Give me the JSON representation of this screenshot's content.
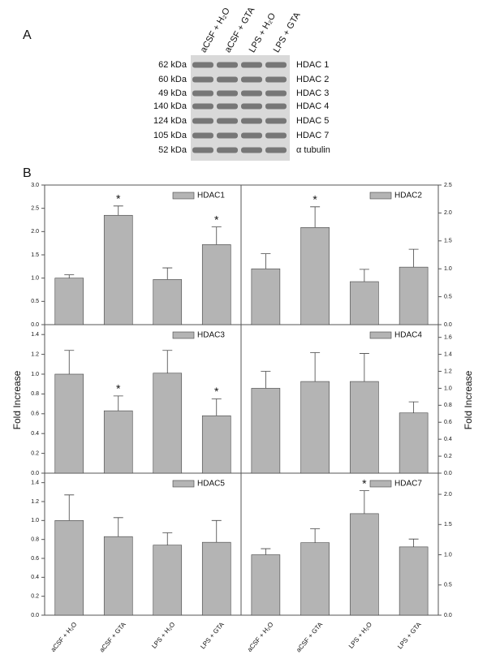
{
  "panel_labels": [
    "A",
    "B"
  ],
  "blot": {
    "lanes": [
      "aCSF + H₂O",
      "aCSF + GTA",
      "LPS + H₂O",
      "LPS + GTA"
    ],
    "rows": [
      {
        "kda": "62 kDa",
        "protein": "HDAC 1"
      },
      {
        "kda": "60 kDa",
        "protein": "HDAC 2"
      },
      {
        "kda": "49 kDa",
        "protein": "HDAC 3"
      },
      {
        "kda": "140 kDa",
        "protein": "HDAC 4"
      },
      {
        "kda": "124 kDa",
        "protein": "HDAC 5"
      },
      {
        "kda": "105 kDa",
        "protein": "HDAC 7"
      },
      {
        "kda": "52 kDa",
        "protein": "α tubulin"
      }
    ]
  },
  "y_label": "Fold Increase",
  "chart_data": [
    {
      "type": "bar",
      "y_axis_side": "left",
      "ylim": [
        0,
        3
      ],
      "yticks": [
        {
          "value": 0,
          "label": "0.0"
        },
        0.5,
        {
          "value": 1,
          "label": "1.0"
        },
        1.5,
        {
          "value": 2,
          "label": "2.0"
        },
        2.5,
        {
          "value": 3,
          "label": "3.0"
        }
      ],
      "series": [
        {
          "name": "HDAC1",
          "color": "#b4b4b4",
          "values": [
            1.0,
            2.35,
            0.97,
            1.72
          ],
          "errors": [
            0.07,
            0.2,
            0.25,
            0.38
          ]
        }
      ],
      "annotations": [
        {
          "index": 1,
          "text": "*"
        },
        {
          "index": 3,
          "text": "*"
        }
      ]
    },
    {
      "type": "bar",
      "y_axis_side": "right",
      "ylim": [
        0,
        2.5
      ],
      "yticks": [
        {
          "value": 0,
          "label": "0.0"
        },
        0.5,
        {
          "value": 1,
          "label": "1.0"
        },
        1.5,
        {
          "value": 2,
          "label": "2.0"
        },
        2.5
      ],
      "series": [
        {
          "name": "HDAC2",
          "color": "#b4b4b4",
          "values": [
            1.0,
            1.74,
            0.77,
            1.03
          ],
          "errors": [
            0.27,
            0.37,
            0.22,
            0.32
          ]
        }
      ],
      "annotations": [
        {
          "index": 1,
          "text": "*"
        }
      ]
    },
    {
      "type": "bar",
      "y_axis_side": "left",
      "ylim": [
        0,
        1.5
      ],
      "yticks": [
        {
          "value": 0,
          "label": "0.0"
        },
        0.2,
        0.4,
        0.6,
        0.8,
        {
          "value": 1,
          "label": "1.0"
        },
        1.2,
        1.4
      ],
      "series": [
        {
          "name": "HDAC3",
          "color": "#b4b4b4",
          "values": [
            1.0,
            0.63,
            1.01,
            0.58
          ],
          "errors": [
            0.24,
            0.15,
            0.23,
            0.17
          ]
        }
      ],
      "annotations": [
        {
          "index": 1,
          "text": "*"
        },
        {
          "index": 3,
          "text": "*"
        }
      ]
    },
    {
      "type": "bar",
      "y_axis_side": "right",
      "ylim": [
        0,
        1.75
      ],
      "yticks": [
        {
          "value": 0,
          "label": "0.0"
        },
        0.2,
        0.4,
        0.6,
        0.8,
        {
          "value": 1,
          "label": "1.0"
        },
        1.2,
        1.4,
        1.6
      ],
      "series": [
        {
          "name": "HDAC4",
          "color": "#b4b4b4",
          "values": [
            1.0,
            1.08,
            1.08,
            0.71
          ],
          "errors": [
            0.2,
            0.34,
            0.33,
            0.13
          ]
        }
      ],
      "annotations": []
    },
    {
      "type": "bar",
      "y_axis_side": "left",
      "ylim": [
        0,
        1.5
      ],
      "yticks": [
        {
          "value": 0,
          "label": "0.0"
        },
        0.2,
        0.4,
        0.6,
        0.8,
        {
          "value": 1,
          "label": "1.0"
        },
        1.2,
        1.4
      ],
      "categories": [
        "aCSF + H₂O",
        "aCSF + GTA",
        "LPS + H₂O",
        "LPS + GTA"
      ],
      "series": [
        {
          "name": "HDAC5",
          "color": "#b4b4b4",
          "values": [
            1.0,
            0.83,
            0.74,
            0.77
          ],
          "errors": [
            0.27,
            0.2,
            0.13,
            0.23
          ]
        }
      ],
      "annotations": []
    },
    {
      "type": "bar",
      "y_axis_side": "right",
      "ylim": [
        0,
        2.35
      ],
      "yticks": [
        {
          "value": 0,
          "label": "0.0"
        },
        0.5,
        {
          "value": 1,
          "label": "1.0"
        },
        1.5,
        {
          "value": 2,
          "label": "2.0"
        }
      ],
      "categories": [
        "aCSF + H₂O",
        "aCSF + GTA",
        "LPS + H₂O",
        "LPS + GTA"
      ],
      "series": [
        {
          "name": "HDAC7",
          "color": "#b4b4b4",
          "values": [
            1.0,
            1.2,
            1.68,
            1.13
          ],
          "errors": [
            0.1,
            0.23,
            0.38,
            0.13
          ]
        }
      ],
      "annotations": [
        {
          "index": 2,
          "text": "*"
        }
      ]
    }
  ]
}
